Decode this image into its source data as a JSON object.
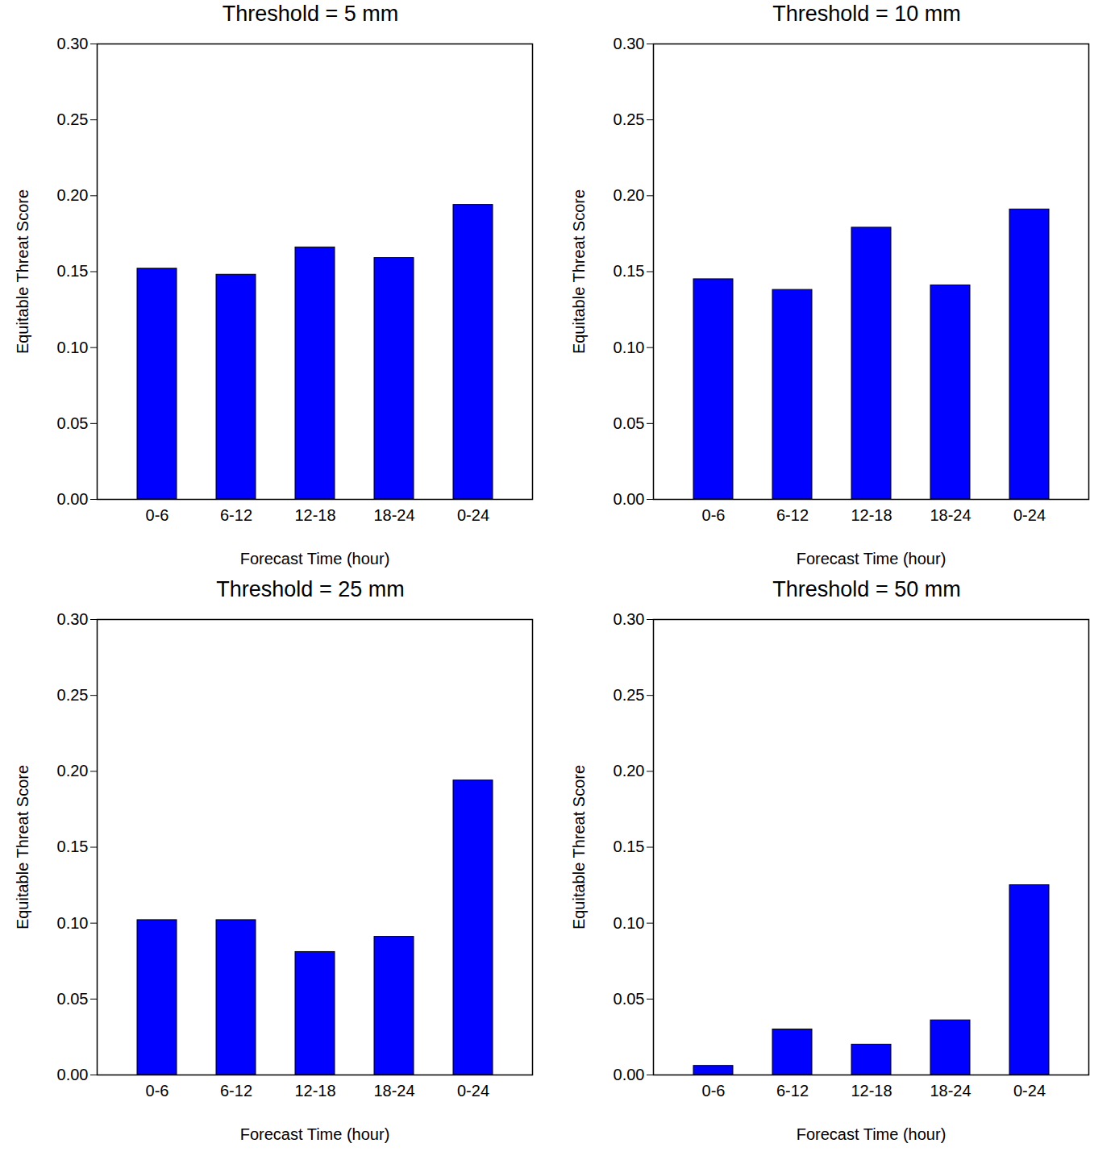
{
  "chart_data": [
    {
      "type": "bar",
      "title": "Threshold = 5 mm",
      "categories": [
        "0-6",
        "6-12",
        "12-18",
        "18-24",
        "0-24"
      ],
      "values": [
        0.152,
        0.148,
        0.166,
        0.159,
        0.194
      ],
      "color": "#0000ff",
      "xlabel": "Forecast Time (hour)",
      "ylabel": "Equitable Threat Score",
      "ylim": [
        0,
        0.3
      ],
      "yticks": [
        {
          "value": 0,
          "label": "0.00"
        },
        {
          "value": 0.05,
          "label": "0.05"
        },
        {
          "value": 0.1,
          "label": "0.10"
        },
        {
          "value": 0.15,
          "label": "0.15"
        },
        {
          "value": 0.2,
          "label": "0.20"
        },
        {
          "value": 0.25,
          "label": "0.25"
        },
        {
          "value": 0.3,
          "label": "0.30"
        }
      ]
    },
    {
      "type": "bar",
      "title": "Threshold = 10 mm",
      "categories": [
        "0-6",
        "6-12",
        "12-18",
        "18-24",
        "0-24"
      ],
      "values": [
        0.145,
        0.138,
        0.179,
        0.141,
        0.191
      ],
      "color": "#0000ff",
      "xlabel": "Forecast Time (hour)",
      "ylabel": "Equitable Threat Score",
      "ylim": [
        0,
        0.3
      ],
      "yticks": [
        {
          "value": 0,
          "label": "0.00"
        },
        {
          "value": 0.05,
          "label": "0.05"
        },
        {
          "value": 0.1,
          "label": "0.10"
        },
        {
          "value": 0.15,
          "label": "0.15"
        },
        {
          "value": 0.2,
          "label": "0.20"
        },
        {
          "value": 0.25,
          "label": "0.25"
        },
        {
          "value": 0.3,
          "label": "0.30"
        }
      ]
    },
    {
      "type": "bar",
      "title": "Threshold = 25 mm",
      "categories": [
        "0-6",
        "6-12",
        "12-18",
        "18-24",
        "0-24"
      ],
      "values": [
        0.102,
        0.102,
        0.081,
        0.091,
        0.194
      ],
      "color": "#0000ff",
      "xlabel": "Forecast Time (hour)",
      "ylabel": "Equitable Threat Score",
      "ylim": [
        0,
        0.3
      ],
      "yticks": [
        {
          "value": 0,
          "label": "0.00"
        },
        {
          "value": 0.05,
          "label": "0.05"
        },
        {
          "value": 0.1,
          "label": "0.10"
        },
        {
          "value": 0.15,
          "label": "0.15"
        },
        {
          "value": 0.2,
          "label": "0.20"
        },
        {
          "value": 0.25,
          "label": "0.25"
        },
        {
          "value": 0.3,
          "label": "0.30"
        }
      ]
    },
    {
      "type": "bar",
      "title": "Threshold = 50 mm",
      "categories": [
        "0-6",
        "6-12",
        "12-18",
        "18-24",
        "0-24"
      ],
      "values": [
        0.006,
        0.03,
        0.02,
        0.036,
        0.125
      ],
      "color": "#0000ff",
      "xlabel": "Forecast Time (hour)",
      "ylabel": "Equitable Threat Score",
      "ylim": [
        0,
        0.3
      ],
      "yticks": [
        {
          "value": 0,
          "label": "0.00"
        },
        {
          "value": 0.05,
          "label": "0.05"
        },
        {
          "value": 0.1,
          "label": "0.10"
        },
        {
          "value": 0.15,
          "label": "0.15"
        },
        {
          "value": 0.2,
          "label": "0.20"
        },
        {
          "value": 0.25,
          "label": "0.25"
        },
        {
          "value": 0.3,
          "label": "0.30"
        }
      ]
    }
  ]
}
